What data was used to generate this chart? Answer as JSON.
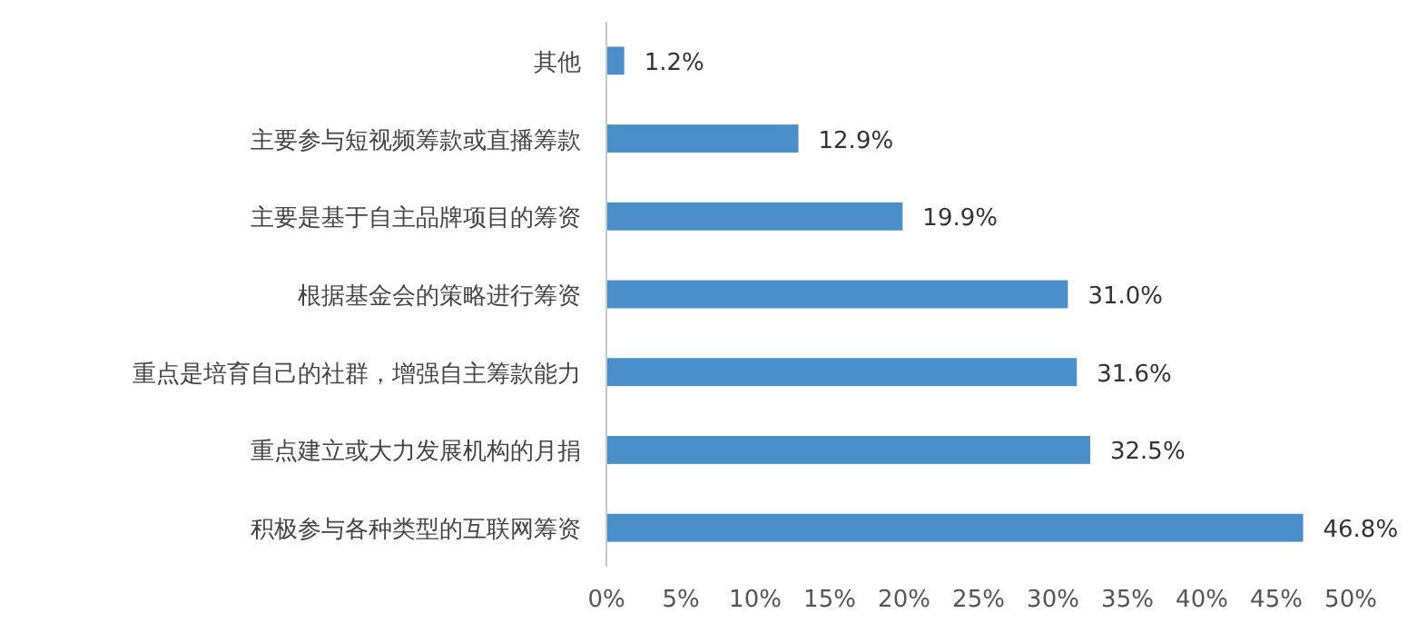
{
  "chart_data": {
    "type": "bar",
    "orientation": "horizontal",
    "categories": [
      "其他",
      "主要参与短视频筹款或直播筹款",
      "主要是基于自主品牌项目的筹资",
      "根据基金会的策略进行筹资",
      "重点是培育自己的社群，增强自主筹款能力",
      "重点建立或大力发展机构的月捐",
      "积极参与各种类型的互联网筹资"
    ],
    "values": [
      1.2,
      12.9,
      19.9,
      31.0,
      31.6,
      32.5,
      46.8
    ],
    "value_labels": [
      "1.2%",
      "12.9%",
      "19.9%",
      "31.0%",
      "31.6%",
      "32.5%",
      "46.8%"
    ],
    "color": "#4a8fca",
    "xlim": [
      0,
      50
    ],
    "xticks": [
      {
        "value": 0,
        "label": "0%"
      },
      {
        "value": 5,
        "label": "5%"
      },
      {
        "value": 10,
        "label": "10%"
      },
      {
        "value": 15,
        "label": "15%"
      },
      {
        "value": 20,
        "label": "20%"
      },
      {
        "value": 25,
        "label": "25%"
      },
      {
        "value": 30,
        "label": "30%"
      },
      {
        "value": 35,
        "label": "35%"
      },
      {
        "value": 40,
        "label": "40%"
      },
      {
        "value": 45,
        "label": "45%"
      },
      {
        "value": 50,
        "label": "50%"
      }
    ],
    "grid": false
  }
}
